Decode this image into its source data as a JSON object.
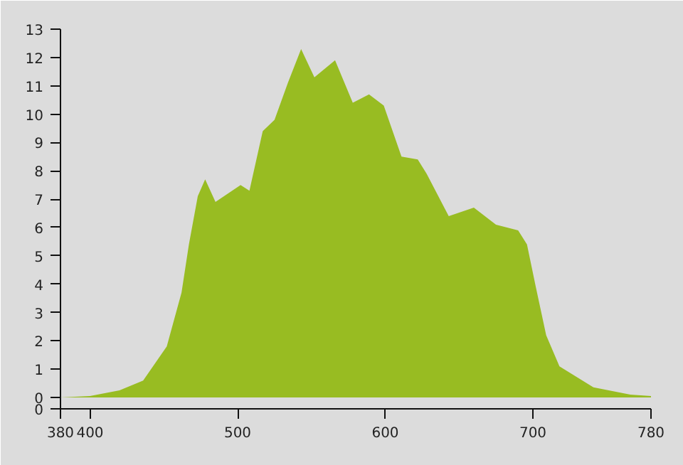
{
  "chart_data": {
    "type": "area",
    "x": [
      380,
      400,
      420,
      436,
      452,
      462,
      467,
      473,
      478,
      485,
      502,
      508,
      517,
      525,
      534,
      543,
      552,
      566,
      578,
      589,
      599,
      611,
      622,
      628,
      643,
      660,
      675,
      690,
      696,
      702,
      709,
      718,
      741,
      766,
      780
    ],
    "series": [
      {
        "values": [
          0,
          0.05,
          0.25,
          0.6,
          1.8,
          3.7,
          5.4,
          7.1,
          7.7,
          6.9,
          7.5,
          7.3,
          9.4,
          9.8,
          11.1,
          12.3,
          11.3,
          11.9,
          10.4,
          10.7,
          10.3,
          8.5,
          8.4,
          7.9,
          6.4,
          6.7,
          6.1,
          5.9,
          5.4,
          3.9,
          2.2,
          1.1,
          0.36,
          0.1,
          0.05
        ],
        "color": "#98bc22"
      }
    ],
    "xlim": [
      380,
      780
    ],
    "ylim": [
      -0.4,
      13
    ],
    "xticks": [
      380,
      400,
      500,
      600,
      700,
      780
    ],
    "yticks": [
      {
        "value": -0.4,
        "label": "0"
      },
      0,
      1,
      2,
      3,
      4,
      5,
      6,
      7,
      8,
      9,
      10,
      11,
      12,
      13
    ],
    "grid": false
  }
}
